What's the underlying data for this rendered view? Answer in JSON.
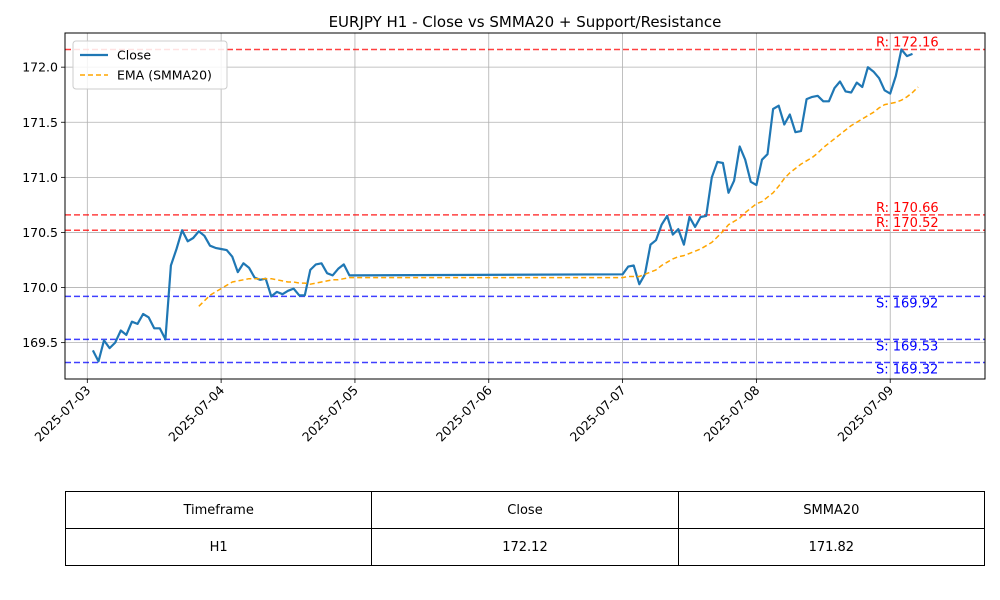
{
  "chart_data": {
    "type": "line",
    "title": "EURJPY H1 - Close vs SMMA20 + Support/Resistance",
    "xlabel": "",
    "ylabel": "",
    "x_ticks": [
      "2025-07-03",
      "2025-07-04",
      "2025-07-05",
      "2025-07-06",
      "2025-07-07",
      "2025-07-08",
      "2025-07-09"
    ],
    "y_ticks": [
      "169.5",
      "170.0",
      "170.5",
      "171.0",
      "171.5",
      "172.0"
    ],
    "ylim": [
      169.17,
      172.31
    ],
    "xlim": [
      "2025-07-02 20:00",
      "2025-07-09 17:00"
    ],
    "grid": true,
    "legend_position": "upper-left",
    "series": [
      {
        "name": "Close",
        "color": "#1f77b4",
        "style": "solid",
        "points": [
          [
            "2025-07-03 01:00",
            169.43
          ],
          [
            "2025-07-03 02:00",
            169.33
          ],
          [
            "2025-07-03 03:00",
            169.52
          ],
          [
            "2025-07-03 04:00",
            169.45
          ],
          [
            "2025-07-03 05:00",
            169.5
          ],
          [
            "2025-07-03 06:00",
            169.61
          ],
          [
            "2025-07-03 07:00",
            169.57
          ],
          [
            "2025-07-03 08:00",
            169.69
          ],
          [
            "2025-07-03 09:00",
            169.67
          ],
          [
            "2025-07-03 10:00",
            169.76
          ],
          [
            "2025-07-03 11:00",
            169.73
          ],
          [
            "2025-07-03 12:00",
            169.63
          ],
          [
            "2025-07-03 13:00",
            169.63
          ],
          [
            "2025-07-03 14:00",
            169.53
          ],
          [
            "2025-07-03 15:00",
            170.2
          ],
          [
            "2025-07-03 16:00",
            170.35
          ],
          [
            "2025-07-03 17:00",
            170.52
          ],
          [
            "2025-07-03 18:00",
            170.42
          ],
          [
            "2025-07-03 19:00",
            170.45
          ],
          [
            "2025-07-03 20:00",
            170.51
          ],
          [
            "2025-07-03 21:00",
            170.47
          ],
          [
            "2025-07-03 22:00",
            170.38
          ],
          [
            "2025-07-03 23:00",
            170.36
          ],
          [
            "2025-07-04 00:00",
            170.35
          ],
          [
            "2025-07-04 01:00",
            170.34
          ],
          [
            "2025-07-04 02:00",
            170.28
          ],
          [
            "2025-07-04 03:00",
            170.14
          ],
          [
            "2025-07-04 04:00",
            170.22
          ],
          [
            "2025-07-04 05:00",
            170.18
          ],
          [
            "2025-07-04 06:00",
            170.09
          ],
          [
            "2025-07-04 07:00",
            170.07
          ],
          [
            "2025-07-04 08:00",
            170.08
          ],
          [
            "2025-07-04 09:00",
            169.92
          ],
          [
            "2025-07-04 10:00",
            169.96
          ],
          [
            "2025-07-04 11:00",
            169.94
          ],
          [
            "2025-07-04 12:00",
            169.97
          ],
          [
            "2025-07-04 13:00",
            169.99
          ],
          [
            "2025-07-04 14:00",
            169.93
          ],
          [
            "2025-07-04 15:00",
            169.93
          ],
          [
            "2025-07-04 16:00",
            170.16
          ],
          [
            "2025-07-04 17:00",
            170.21
          ],
          [
            "2025-07-04 18:00",
            170.22
          ],
          [
            "2025-07-04 19:00",
            170.13
          ],
          [
            "2025-07-04 20:00",
            170.11
          ],
          [
            "2025-07-04 21:00",
            170.17
          ],
          [
            "2025-07-04 22:00",
            170.21
          ],
          [
            "2025-07-04 23:00",
            170.11
          ],
          [
            "2025-07-07 00:00",
            170.12
          ],
          [
            "2025-07-07 01:00",
            170.19
          ],
          [
            "2025-07-07 02:00",
            170.2
          ],
          [
            "2025-07-07 03:00",
            170.03
          ],
          [
            "2025-07-07 04:00",
            170.12
          ],
          [
            "2025-07-07 05:00",
            170.39
          ],
          [
            "2025-07-07 06:00",
            170.43
          ],
          [
            "2025-07-07 07:00",
            170.57
          ],
          [
            "2025-07-07 08:00",
            170.65
          ],
          [
            "2025-07-07 09:00",
            170.48
          ],
          [
            "2025-07-07 10:00",
            170.53
          ],
          [
            "2025-07-07 11:00",
            170.39
          ],
          [
            "2025-07-07 12:00",
            170.64
          ],
          [
            "2025-07-07 13:00",
            170.55
          ],
          [
            "2025-07-07 14:00",
            170.64
          ],
          [
            "2025-07-07 15:00",
            170.65
          ],
          [
            "2025-07-07 16:00",
            171.0
          ],
          [
            "2025-07-07 17:00",
            171.14
          ],
          [
            "2025-07-07 18:00",
            171.13
          ],
          [
            "2025-07-07 19:00",
            170.86
          ],
          [
            "2025-07-07 20:00",
            170.97
          ],
          [
            "2025-07-07 21:00",
            171.28
          ],
          [
            "2025-07-07 22:00",
            171.16
          ],
          [
            "2025-07-07 23:00",
            170.96
          ],
          [
            "2025-07-08 00:00",
            170.93
          ],
          [
            "2025-07-08 01:00",
            171.16
          ],
          [
            "2025-07-08 02:00",
            171.21
          ],
          [
            "2025-07-08 03:00",
            171.62
          ],
          [
            "2025-07-08 04:00",
            171.65
          ],
          [
            "2025-07-08 05:00",
            171.48
          ],
          [
            "2025-07-08 06:00",
            171.57
          ],
          [
            "2025-07-08 07:00",
            171.41
          ],
          [
            "2025-07-08 08:00",
            171.42
          ],
          [
            "2025-07-08 09:00",
            171.71
          ],
          [
            "2025-07-08 10:00",
            171.73
          ],
          [
            "2025-07-08 11:00",
            171.74
          ],
          [
            "2025-07-08 12:00",
            171.69
          ],
          [
            "2025-07-08 13:00",
            171.69
          ],
          [
            "2025-07-08 14:00",
            171.81
          ],
          [
            "2025-07-08 15:00",
            171.87
          ],
          [
            "2025-07-08 16:00",
            171.78
          ],
          [
            "2025-07-08 17:00",
            171.77
          ],
          [
            "2025-07-08 18:00",
            171.86
          ],
          [
            "2025-07-08 19:00",
            171.82
          ],
          [
            "2025-07-08 20:00",
            172.0
          ],
          [
            "2025-07-08 21:00",
            171.96
          ],
          [
            "2025-07-08 22:00",
            171.9
          ],
          [
            "2025-07-08 23:00",
            171.79
          ],
          [
            "2025-07-09 00:00",
            171.76
          ],
          [
            "2025-07-09 01:00",
            171.92
          ],
          [
            "2025-07-09 02:00",
            172.16
          ],
          [
            "2025-07-09 03:00",
            172.1
          ],
          [
            "2025-07-09 04:00",
            172.12
          ]
        ]
      },
      {
        "name": "EMA (SMMA20)",
        "color": "#ffa500",
        "style": "dashed",
        "points": [
          [
            "2025-07-03 20:00",
            169.83
          ],
          [
            "2025-07-03 21:00",
            169.88
          ],
          [
            "2025-07-03 22:00",
            169.93
          ],
          [
            "2025-07-03 23:00",
            169.96
          ],
          [
            "2025-07-04 00:00",
            169.99
          ],
          [
            "2025-07-04 01:00",
            170.02
          ],
          [
            "2025-07-04 02:00",
            170.05
          ],
          [
            "2025-07-04 03:00",
            170.06
          ],
          [
            "2025-07-04 04:00",
            170.07
          ],
          [
            "2025-07-04 05:00",
            170.08
          ],
          [
            "2025-07-04 06:00",
            170.08
          ],
          [
            "2025-07-04 07:00",
            170.08
          ],
          [
            "2025-07-04 08:00",
            170.08
          ],
          [
            "2025-07-04 09:00",
            170.08
          ],
          [
            "2025-07-04 10:00",
            170.07
          ],
          [
            "2025-07-04 11:00",
            170.06
          ],
          [
            "2025-07-04 12:00",
            170.05
          ],
          [
            "2025-07-04 13:00",
            170.05
          ],
          [
            "2025-07-04 14:00",
            170.04
          ],
          [
            "2025-07-04 15:00",
            170.04
          ],
          [
            "2025-07-04 16:00",
            170.03
          ],
          [
            "2025-07-04 17:00",
            170.04
          ],
          [
            "2025-07-04 18:00",
            170.05
          ],
          [
            "2025-07-04 19:00",
            170.06
          ],
          [
            "2025-07-04 20:00",
            170.07
          ],
          [
            "2025-07-04 21:00",
            170.07
          ],
          [
            "2025-07-04 22:00",
            170.08
          ],
          [
            "2025-07-04 23:00",
            170.09
          ],
          [
            "2025-07-07 00:00",
            170.09
          ],
          [
            "2025-07-07 01:00",
            170.1
          ],
          [
            "2025-07-07 02:00",
            170.1
          ],
          [
            "2025-07-07 03:00",
            170.1
          ],
          [
            "2025-07-07 04:00",
            170.12
          ],
          [
            "2025-07-07 05:00",
            170.14
          ],
          [
            "2025-07-07 06:00",
            170.16
          ],
          [
            "2025-07-07 07:00",
            170.2
          ],
          [
            "2025-07-07 08:00",
            170.23
          ],
          [
            "2025-07-07 09:00",
            170.26
          ],
          [
            "2025-07-07 10:00",
            170.28
          ],
          [
            "2025-07-07 11:00",
            170.29
          ],
          [
            "2025-07-07 12:00",
            170.31
          ],
          [
            "2025-07-07 13:00",
            170.33
          ],
          [
            "2025-07-07 14:00",
            170.35
          ],
          [
            "2025-07-07 15:00",
            170.38
          ],
          [
            "2025-07-07 16:00",
            170.41
          ],
          [
            "2025-07-07 17:00",
            170.46
          ],
          [
            "2025-07-07 18:00",
            170.51
          ],
          [
            "2025-07-07 19:00",
            170.57
          ],
          [
            "2025-07-07 20:00",
            170.6
          ],
          [
            "2025-07-07 21:00",
            170.63
          ],
          [
            "2025-07-07 22:00",
            170.68
          ],
          [
            "2025-07-07 23:00",
            170.72
          ],
          [
            "2025-07-08 00:00",
            170.76
          ],
          [
            "2025-07-08 01:00",
            170.78
          ],
          [
            "2025-07-08 02:00",
            170.82
          ],
          [
            "2025-07-08 03:00",
            170.86
          ],
          [
            "2025-07-08 04:00",
            170.92
          ],
          [
            "2025-07-08 05:00",
            170.99
          ],
          [
            "2025-07-08 06:00",
            171.04
          ],
          [
            "2025-07-08 07:00",
            171.08
          ],
          [
            "2025-07-08 08:00",
            171.12
          ],
          [
            "2025-07-08 09:00",
            171.15
          ],
          [
            "2025-07-08 10:00",
            171.18
          ],
          [
            "2025-07-08 11:00",
            171.22
          ],
          [
            "2025-07-08 12:00",
            171.27
          ],
          [
            "2025-07-08 13:00",
            171.31
          ],
          [
            "2025-07-08 14:00",
            171.35
          ],
          [
            "2025-07-08 15:00",
            171.39
          ],
          [
            "2025-07-08 16:00",
            171.43
          ],
          [
            "2025-07-08 17:00",
            171.47
          ],
          [
            "2025-07-08 18:00",
            171.5
          ],
          [
            "2025-07-08 19:00",
            171.53
          ],
          [
            "2025-07-08 20:00",
            171.56
          ],
          [
            "2025-07-08 21:00",
            171.59
          ],
          [
            "2025-07-08 22:00",
            171.63
          ],
          [
            "2025-07-08 23:00",
            171.66
          ],
          [
            "2025-07-09 00:00",
            171.67
          ],
          [
            "2025-07-09 01:00",
            171.68
          ],
          [
            "2025-07-09 02:00",
            171.7
          ],
          [
            "2025-07-09 03:00",
            171.73
          ],
          [
            "2025-07-09 04:00",
            171.77
          ],
          [
            "2025-07-09 05:00",
            171.82
          ]
        ]
      }
    ],
    "levels": [
      {
        "kind": "resistance",
        "value": 172.16,
        "label": "R: 172.16",
        "color": "#ff0000"
      },
      {
        "kind": "resistance",
        "value": 170.66,
        "label": "R: 170.66",
        "color": "#ff0000"
      },
      {
        "kind": "resistance",
        "value": 170.52,
        "label": "R: 170.52",
        "color": "#ff0000"
      },
      {
        "kind": "support",
        "value": 169.92,
        "label": "S: 169.92",
        "color": "#0000ff"
      },
      {
        "kind": "support",
        "value": 169.53,
        "label": "S: 169.53",
        "color": "#0000ff"
      },
      {
        "kind": "support",
        "value": 169.32,
        "label": "S: 169.32",
        "color": "#0000ff"
      }
    ]
  },
  "table": {
    "headers": [
      "Timeframe",
      "Close",
      "SMMA20"
    ],
    "rows": [
      [
        "H1",
        "172.12",
        "171.82"
      ]
    ]
  }
}
